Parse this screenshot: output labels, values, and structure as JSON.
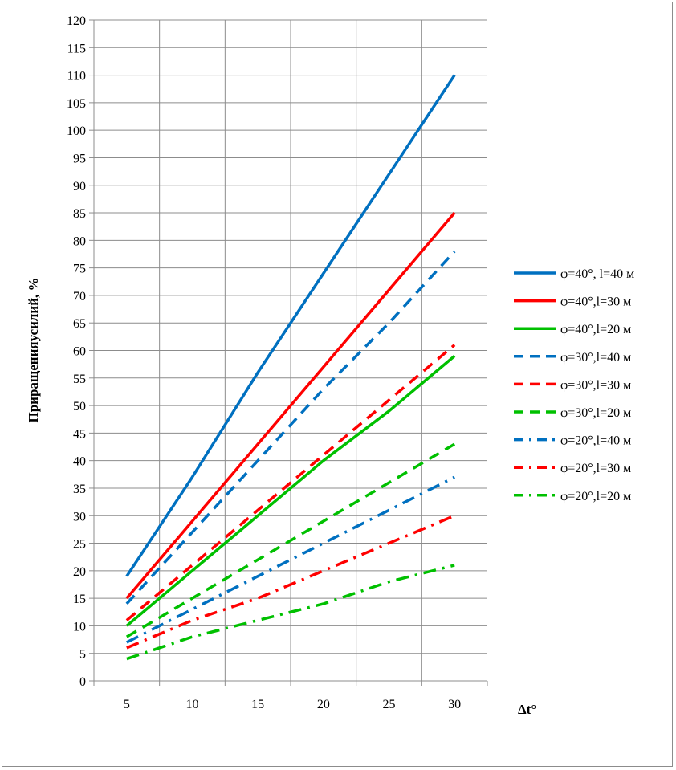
{
  "chart_data": {
    "type": "line",
    "title": "",
    "xlabel": "Δt°",
    "ylabel": "Приращенияусилий, %",
    "x": [
      5,
      10,
      15,
      20,
      25,
      30
    ],
    "xlim": [
      2.5,
      32.5
    ],
    "ylim": [
      0,
      120
    ],
    "ytick_step": 5,
    "grid": true,
    "legend_position": "right",
    "series": [
      {
        "name": "φ=40°, l=40 м",
        "values": [
          19,
          37,
          56,
          74,
          92,
          110
        ],
        "color": "#0070c0",
        "dash": "solid"
      },
      {
        "name": "φ=40°,l=30 м",
        "values": [
          15,
          29,
          43,
          57,
          71,
          85
        ],
        "color": "#ff0000",
        "dash": "solid"
      },
      {
        "name": "φ=40°,l=20 м",
        "values": [
          10,
          20,
          30,
          40,
          49,
          59
        ],
        "color": "#00c000",
        "dash": "solid"
      },
      {
        "name": "φ=30°,l=40 м",
        "values": [
          14,
          27,
          40,
          53,
          65,
          78
        ],
        "color": "#0070c0",
        "dash": "dash"
      },
      {
        "name": "φ=30°,l=30 м",
        "values": [
          11,
          21,
          31,
          41,
          51,
          61
        ],
        "color": "#ff0000",
        "dash": "dash"
      },
      {
        "name": "φ=30°,l=20 м",
        "values": [
          8,
          15,
          22,
          29,
          36,
          43
        ],
        "color": "#00c000",
        "dash": "dash"
      },
      {
        "name": "φ=20°,l=40 м",
        "values": [
          7,
          13,
          19,
          25,
          31,
          37
        ],
        "color": "#0070c0",
        "dash": "dashdot"
      },
      {
        "name": "φ=20°,l=30 м",
        "values": [
          6,
          11,
          15,
          20,
          25,
          30
        ],
        "color": "#ff0000",
        "dash": "dashdot"
      },
      {
        "name": "φ=20°,l=20 м",
        "values": [
          4,
          8,
          11,
          14,
          18,
          21
        ],
        "color": "#00c000",
        "dash": "dashdot"
      }
    ]
  }
}
